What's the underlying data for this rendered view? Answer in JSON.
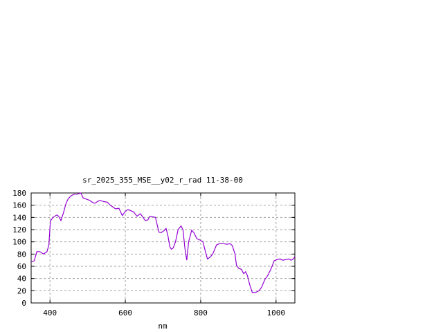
{
  "chart_data": {
    "type": "line",
    "title": "sr_2025_355_MSE__y02_r_rad 11-38-00",
    "xlabel": "nm",
    "ylabel": "",
    "xlim": [
      350,
      1050
    ],
    "ylim": [
      0,
      180
    ],
    "xticks": [
      400,
      600,
      800,
      1000
    ],
    "yticks": [
      0,
      20,
      40,
      60,
      80,
      100,
      120,
      140,
      160,
      180
    ],
    "grid": true,
    "line_color": "#9400d3",
    "series": [
      {
        "x": [
          350,
          358,
          365,
          373,
          383,
          392,
          397,
          401,
          408,
          418,
          423,
          429,
          436,
          442,
          448,
          455,
          464,
          472,
          482,
          488,
          496,
          505,
          512,
          519,
          526,
          533,
          542,
          552,
          560,
          567,
          574,
          583,
          592,
          600,
          607,
          614,
          622,
          631,
          640,
          646,
          653,
          660,
          665,
          672,
          680,
          689,
          695,
          702,
          708,
          713,
          718,
          722,
          727,
          733,
          740,
          748,
          753,
          758,
          763,
          768,
          776,
          782,
          790,
          798,
          806,
          812,
          818,
          825,
          832,
          842,
          850,
          860,
          870,
          878,
          884,
          891,
          895,
          900,
          908,
          914,
          919,
          924,
          930,
          937,
          945,
          955,
          962,
          970,
          978,
          986,
          995,
          1002,
          1010,
          1018,
          1026,
          1034,
          1040,
          1046,
          1050
        ],
        "values": [
          67,
          69,
          84,
          84,
          80,
          84,
          95,
          134,
          140,
          144,
          142,
          135,
          148,
          162,
          170,
          175,
          178,
          178,
          180,
          172,
          170,
          168,
          165,
          163,
          166,
          168,
          166,
          165,
          160,
          157,
          154,
          155,
          143,
          150,
          153,
          151,
          149,
          142,
          146,
          141,
          135,
          136,
          142,
          141,
          140,
          116,
          115,
          118,
          122,
          110,
          92,
          88,
          90,
          100,
          120,
          126,
          120,
          90,
          70,
          100,
          119,
          115,
          105,
          103,
          100,
          85,
          72,
          75,
          80,
          95,
          97,
          97,
          96,
          97,
          94,
          80,
          62,
          57,
          55,
          48,
          51,
          45,
          30,
          17,
          17,
          20,
          26,
          38,
          45,
          55,
          69,
          71,
          72,
          70,
          71,
          72,
          70,
          72,
          76
        ]
      }
    ]
  }
}
